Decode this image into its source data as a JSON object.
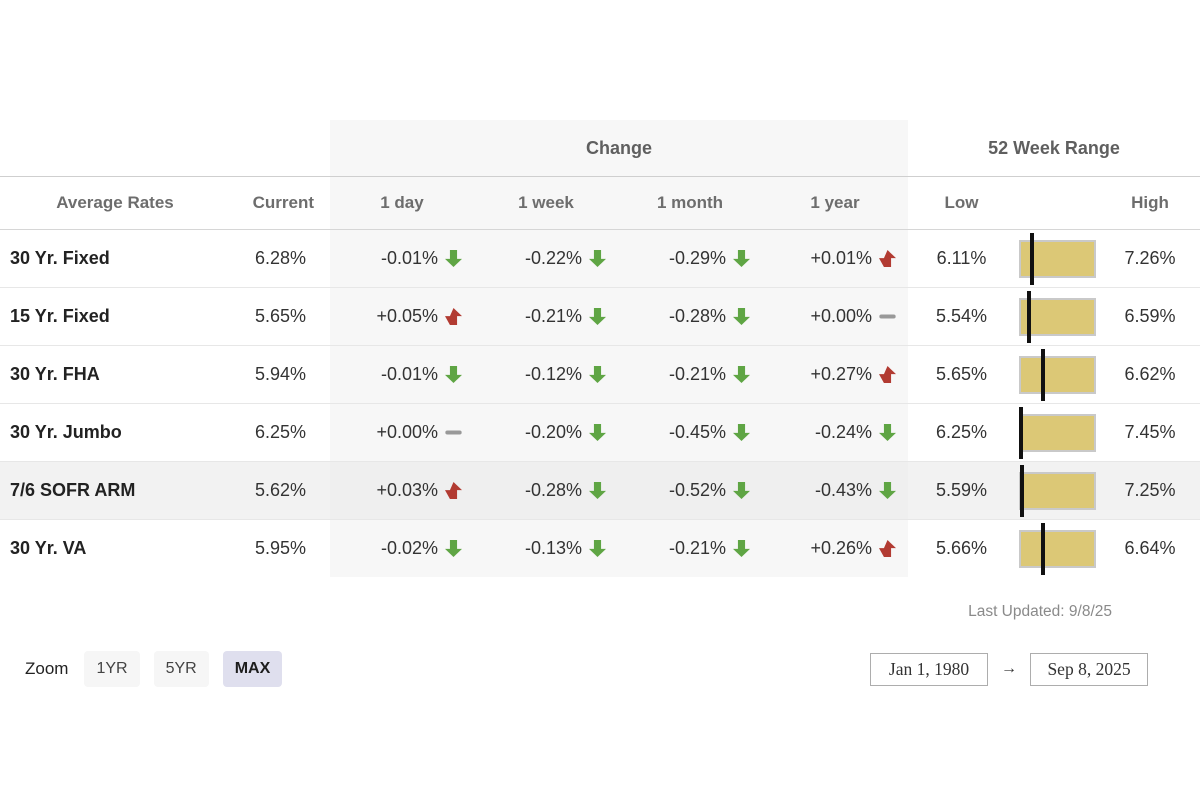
{
  "colors": {
    "up_arrow": "#b23b32",
    "down_arrow": "#5fa544",
    "flat_dash": "#999999",
    "range_bar_fill": "#dcc876",
    "range_bar_border": "#c9c9c9",
    "change_block_bg": "#f7f7f7",
    "highlight_row_bg": "#f2f2f2",
    "active_zoom_bg": "#dfdfee"
  },
  "table": {
    "group_change": "Change",
    "group_range": "52 Week Range",
    "col_name": "Average Rates",
    "col_current": "Current",
    "col_1day": "1 day",
    "col_1week": "1 week",
    "col_1month": "1 month",
    "col_1year": "1 year",
    "col_low": "Low",
    "col_high": "High",
    "rows": [
      {
        "name": "30 Yr. Fixed",
        "current": "6.28%",
        "changes": [
          {
            "value": "-0.01%",
            "dir": "down"
          },
          {
            "value": "-0.22%",
            "dir": "down"
          },
          {
            "value": "-0.29%",
            "dir": "down"
          },
          {
            "value": "+0.01%",
            "dir": "up"
          }
        ],
        "low": "6.11%",
        "high": "7.26%",
        "highlighted": false
      },
      {
        "name": "15 Yr. Fixed",
        "current": "5.65%",
        "changes": [
          {
            "value": "+0.05%",
            "dir": "up"
          },
          {
            "value": "-0.21%",
            "dir": "down"
          },
          {
            "value": "-0.28%",
            "dir": "down"
          },
          {
            "value": "+0.00%",
            "dir": "flat"
          }
        ],
        "low": "5.54%",
        "high": "6.59%",
        "highlighted": false
      },
      {
        "name": "30 Yr. FHA",
        "current": "5.94%",
        "changes": [
          {
            "value": "-0.01%",
            "dir": "down"
          },
          {
            "value": "-0.12%",
            "dir": "down"
          },
          {
            "value": "-0.21%",
            "dir": "down"
          },
          {
            "value": "+0.27%",
            "dir": "up"
          }
        ],
        "low": "5.65%",
        "high": "6.62%",
        "highlighted": false
      },
      {
        "name": "30 Yr. Jumbo",
        "current": "6.25%",
        "changes": [
          {
            "value": "+0.00%",
            "dir": "flat"
          },
          {
            "value": "-0.20%",
            "dir": "down"
          },
          {
            "value": "-0.45%",
            "dir": "down"
          },
          {
            "value": "-0.24%",
            "dir": "down"
          }
        ],
        "low": "6.25%",
        "high": "7.45%",
        "highlighted": false
      },
      {
        "name": "7/6 SOFR ARM",
        "current": "5.62%",
        "changes": [
          {
            "value": "+0.03%",
            "dir": "up"
          },
          {
            "value": "-0.28%",
            "dir": "down"
          },
          {
            "value": "-0.52%",
            "dir": "down"
          },
          {
            "value": "-0.43%",
            "dir": "down"
          }
        ],
        "low": "5.59%",
        "high": "7.25%",
        "highlighted": true
      },
      {
        "name": "30 Yr. VA",
        "current": "5.95%",
        "changes": [
          {
            "value": "-0.02%",
            "dir": "down"
          },
          {
            "value": "-0.13%",
            "dir": "down"
          },
          {
            "value": "-0.21%",
            "dir": "down"
          },
          {
            "value": "+0.26%",
            "dir": "up"
          }
        ],
        "low": "5.66%",
        "high": "6.64%",
        "highlighted": false
      }
    ]
  },
  "footer": {
    "last_updated": "Last Updated: 9/8/25",
    "zoom_label": "Zoom",
    "zoom_options": [
      {
        "label": "1YR",
        "active": false
      },
      {
        "label": "5YR",
        "active": false
      },
      {
        "label": "MAX",
        "active": true
      }
    ],
    "date_from": "Jan 1, 1980",
    "date_to": "Sep 8, 2025",
    "range_arrow": "→"
  }
}
